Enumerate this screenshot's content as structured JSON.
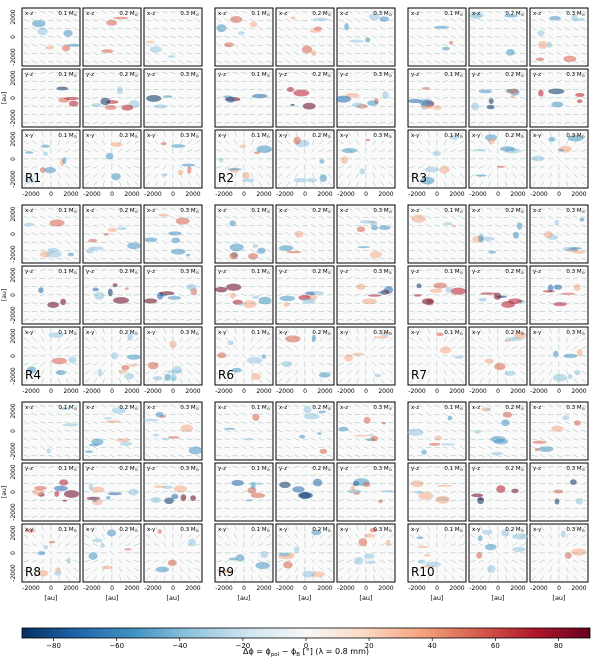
{
  "panels": [
    {
      "name": "R1"
    },
    {
      "name": "R2"
    },
    {
      "name": "R3"
    },
    {
      "name": "R4"
    },
    {
      "name": "R6"
    },
    {
      "name": "R7"
    },
    {
      "name": "R8"
    },
    {
      "name": "R9"
    },
    {
      "name": "R10"
    }
  ],
  "subplot_labels": {
    "view_xz": "x-z",
    "view_yz": "y-z",
    "view_xy": "x-y",
    "mass_1": "0.1 M",
    "mass_2": "0.2 M",
    "mass_3": "0.3 M",
    "mass_sub": "⊙"
  },
  "axes": {
    "unit_label": "[au]",
    "ticks": [
      "-2000",
      "0",
      "2000"
    ]
  },
  "colorbar": {
    "label": "Δϕ = ϕ",
    "label_sub1": "pol",
    "label_mid": " − ϕ",
    "label_sub2": "B",
    "label_end": " [°] (λ = 0.8 mm)",
    "ticks": [
      "−80",
      "−60",
      "−40",
      "−20",
      "0",
      "20",
      "40",
      "60",
      "80"
    ],
    "range": [
      -90,
      90
    ],
    "colors": [
      "#053061",
      "#2166ac",
      "#4393c3",
      "#92c5de",
      "#d1e5f0",
      "#f7f7f7",
      "#fddbc7",
      "#f4a582",
      "#d6604d",
      "#b2182b",
      "#67001f"
    ]
  }
}
